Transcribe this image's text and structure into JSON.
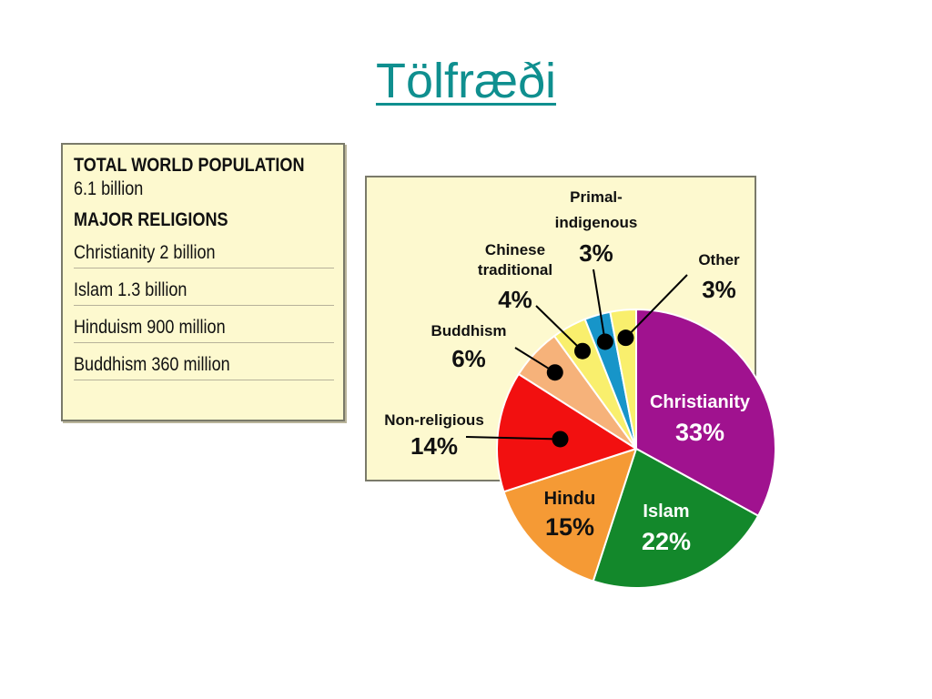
{
  "slide": {
    "title": "Tölfræði"
  },
  "info_box": {
    "total_heading": "TOTAL WORLD POPULATION",
    "total_value": "6.1 billion",
    "religions_heading": "MAJOR RELIGIONS",
    "religions": [
      "Christianity 2 billion",
      "Islam 1.3 billion",
      "Hinduism 900 million",
      "Buddhism 360 million"
    ]
  },
  "chart_data": {
    "type": "pie",
    "title": "",
    "start_angle_deg": 0,
    "direction": "clockwise",
    "slices": [
      {
        "name": "Christianity",
        "value": 33,
        "label": "33%",
        "color": "#a0128f",
        "label_color": "#ffffff"
      },
      {
        "name": "Islam",
        "value": 22,
        "label": "22%",
        "color": "#13882b",
        "label_color": "#ffffff"
      },
      {
        "name": "Hindu",
        "value": 15,
        "label": "15%",
        "color": "#f59a35",
        "label_color": "#111111"
      },
      {
        "name": "Non-religious",
        "value": 14,
        "label": "14%",
        "color": "#f21010",
        "label_color": "#111111",
        "callout": true
      },
      {
        "name": "Buddhism",
        "value": 6,
        "label": "6%",
        "color": "#f6b27a",
        "label_color": "#111111",
        "callout": true
      },
      {
        "name": "Chinese traditional",
        "value": 4,
        "label": "4%",
        "color": "#f9ef6d",
        "label_color": "#111111",
        "callout": true
      },
      {
        "name": "Primal-indigenous",
        "value": 3,
        "label": "3%",
        "color": "#1795c9",
        "label_color": "#111111",
        "callout": true
      },
      {
        "name": "Other",
        "value": 3,
        "label": "3%",
        "color": "#f9ef6d",
        "label_color": "#111111",
        "callout": true
      }
    ]
  }
}
